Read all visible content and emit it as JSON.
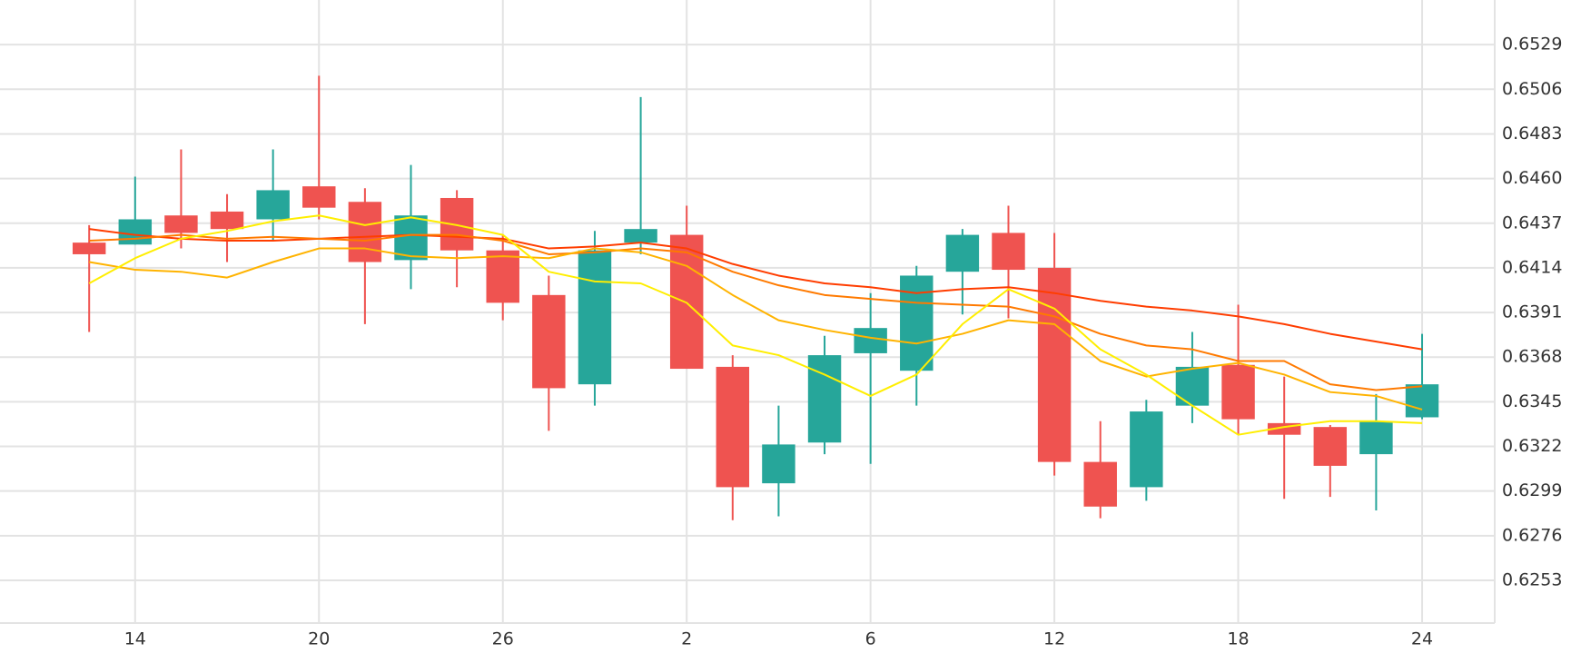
{
  "chart_data": {
    "type": "candlestick",
    "categories": [
      null,
      "14",
      null,
      null,
      null,
      "20",
      null,
      null,
      null,
      "26",
      null,
      null,
      null,
      "2",
      null,
      null,
      null,
      "6",
      null,
      null,
      null,
      "12",
      null,
      null,
      null,
      "18",
      null,
      null,
      null,
      "24"
    ],
    "open": [
      0.6427,
      0.6426,
      0.6441,
      0.6443,
      0.6439,
      0.6456,
      0.6448,
      0.6418,
      0.645,
      0.6423,
      0.64,
      0.6354,
      0.6427,
      0.6431,
      0.6363,
      0.6303,
      0.6324,
      0.637,
      0.6361,
      0.6412,
      0.6432,
      0.6414,
      0.6314,
      0.6301,
      0.6343,
      0.6364,
      0.6334,
      0.6332,
      0.6318,
      0.6337
    ],
    "high": [
      0.6436,
      0.6461,
      0.6475,
      0.6452,
      0.6475,
      0.6513,
      0.6455,
      0.6467,
      0.6454,
      0.6431,
      0.641,
      0.6433,
      0.6502,
      0.6446,
      0.6369,
      0.6343,
      0.6379,
      0.6401,
      0.6415,
      0.6434,
      0.6446,
      0.6432,
      0.6335,
      0.6346,
      0.6381,
      0.6395,
      0.6358,
      0.6333,
      0.6349,
      0.638
    ],
    "low": [
      0.6381,
      0.6426,
      0.6424,
      0.6417,
      0.6428,
      0.6439,
      0.6385,
      0.6403,
      0.6404,
      0.6387,
      0.633,
      0.6343,
      0.6421,
      0.6362,
      0.6284,
      0.6286,
      0.6318,
      0.6313,
      0.6343,
      0.639,
      0.6388,
      0.6307,
      0.6285,
      0.6294,
      0.6334,
      0.6328,
      0.6295,
      0.6296,
      0.6289,
      0.6336
    ],
    "close": [
      0.6421,
      0.6439,
      0.6432,
      0.6434,
      0.6454,
      0.6445,
      0.6417,
      0.6441,
      0.6423,
      0.6396,
      0.6352,
      0.6423,
      0.6434,
      0.6362,
      0.6301,
      0.6323,
      0.6369,
      0.6383,
      0.641,
      0.6431,
      0.6413,
      0.6314,
      0.6291,
      0.634,
      0.6363,
      0.6336,
      0.6328,
      0.6312,
      0.6335,
      0.6354
    ],
    "up_color": "#26a69a",
    "down_color": "#ef5350",
    "series": [
      {
        "color": "#ff3d00",
        "values": [
          0.6434,
          0.6431,
          0.6429,
          0.6428,
          0.6428,
          0.6429,
          0.643,
          0.6431,
          0.643,
          0.6429,
          0.6424,
          0.6425,
          0.6427,
          0.6424,
          0.6416,
          0.641,
          0.6406,
          0.6404,
          0.6401,
          0.6403,
          0.6404,
          0.6401,
          0.6397,
          0.6394,
          0.6392,
          0.6389,
          0.6385,
          0.638,
          0.6376,
          0.6372
        ]
      },
      {
        "color": "#ff7a00",
        "values": [
          0.6428,
          0.6429,
          0.6431,
          0.6429,
          0.643,
          0.6429,
          0.6428,
          0.6431,
          0.6431,
          0.6428,
          0.6421,
          0.6422,
          0.6424,
          0.6422,
          0.6412,
          0.6405,
          0.64,
          0.6398,
          0.6396,
          0.6395,
          0.6394,
          0.6389,
          0.638,
          0.6374,
          0.6372,
          0.6366,
          0.6366,
          0.6354,
          0.6351,
          0.6353
        ]
      },
      {
        "color": "#ffb300",
        "values": [
          0.6417,
          0.6413,
          0.6412,
          0.6409,
          0.6417,
          0.6424,
          0.6424,
          0.642,
          0.6419,
          0.642,
          0.6419,
          0.6424,
          0.6422,
          0.6415,
          0.64,
          0.6387,
          0.6382,
          0.6378,
          0.6375,
          0.638,
          0.6387,
          0.6385,
          0.6366,
          0.6358,
          0.6362,
          0.6365,
          0.6359,
          0.635,
          0.6348,
          0.6341
        ]
      },
      {
        "color": "#ffee00",
        "values": [
          0.6406,
          0.6419,
          0.6429,
          0.6433,
          0.6438,
          0.6441,
          0.6436,
          0.644,
          0.6436,
          0.6431,
          0.6412,
          0.6407,
          0.6406,
          0.6396,
          0.6374,
          0.6369,
          0.6359,
          0.6348,
          0.6359,
          0.6385,
          0.6403,
          0.6393,
          0.6372,
          0.6359,
          0.6343,
          0.6328,
          0.6332,
          0.6335,
          0.6335,
          0.6334
        ]
      }
    ],
    "ylim": [
      0.6231,
      0.6552
    ],
    "yticks": [
      0.6253,
      0.6276,
      0.6299,
      0.6322,
      0.6345,
      0.6368,
      0.6391,
      0.6414,
      0.6437,
      {
        "value": 0.646,
        "label": "0.6460"
      },
      0.6483,
      0.6506,
      0.6529
    ],
    "grid": true,
    "y_axis_side": "right"
  }
}
